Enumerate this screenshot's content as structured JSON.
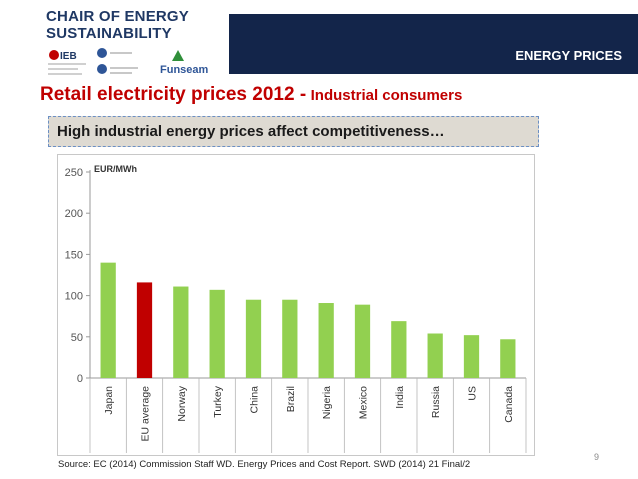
{
  "header": {
    "logo_line1": "CHAIR OF ENERGY",
    "logo_line2": "SUSTAINABILITY",
    "band_label": "ENERGY PRICES",
    "logos": [
      "IEB",
      "UB",
      "Funseam"
    ],
    "band_color": "#13254a"
  },
  "slide": {
    "title_main": "Retail electricity prices 2012 -",
    "title_sub": "Industrial consumers",
    "subtitle": "High industrial energy prices affect competitiveness…",
    "source": "Source: EC (2014) Commission Staff WD. Energy Prices and Cost Report. SWD (2014) 21 Final/2",
    "page_number": "9"
  },
  "chart_data": {
    "type": "bar",
    "title": "",
    "ylabel": "EUR/MWh",
    "xlabel": "",
    "ylim": [
      0,
      250
    ],
    "yticks": [
      0,
      50,
      100,
      150,
      200,
      250
    ],
    "grid": false,
    "categories": [
      "Japan",
      "EU average",
      "Norway",
      "Turkey",
      "China",
      "Brazil",
      "Nigeria",
      "Mexico",
      "India",
      "Russia",
      "US",
      "Canada"
    ],
    "values": [
      140,
      116,
      111,
      107,
      95,
      95,
      91,
      89,
      69,
      54,
      52,
      47
    ],
    "colors": [
      "#92d050",
      "#c00000",
      "#92d050",
      "#92d050",
      "#92d050",
      "#92d050",
      "#92d050",
      "#92d050",
      "#92d050",
      "#92d050",
      "#92d050",
      "#92d050"
    ]
  }
}
